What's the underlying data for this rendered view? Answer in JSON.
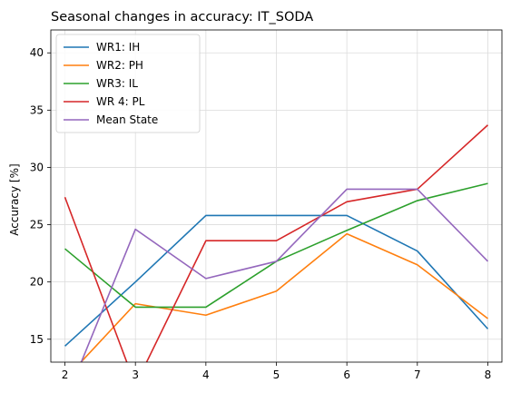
{
  "chart_data": {
    "type": "line",
    "title": "Seasonal changes in accuracy: IT_SODA",
    "xlabel": "",
    "ylabel": "Accuracy [%]",
    "x": [
      2,
      3,
      4,
      5,
      6,
      7,
      8
    ],
    "xlim": [
      1.8,
      8.2
    ],
    "ylim": [
      13,
      42
    ],
    "xticks": [
      2,
      3,
      4,
      5,
      6,
      7,
      8
    ],
    "yticks": [
      15,
      20,
      25,
      30,
      35,
      40
    ],
    "grid": true,
    "legend_position": "top-left",
    "series": [
      {
        "name": "WR1: IH",
        "color": "#1f77b4",
        "values": [
          14.4,
          20.0,
          25.8,
          25.8,
          25.8,
          22.7,
          15.9
        ]
      },
      {
        "name": "WR2: PH",
        "color": "#ff7f0e",
        "values": [
          11.5,
          18.1,
          17.1,
          19.2,
          24.2,
          21.5,
          16.8
        ]
      },
      {
        "name": "WR3: IL",
        "color": "#2ca02c",
        "values": [
          22.9,
          17.8,
          17.8,
          21.8,
          24.5,
          27.1,
          28.6
        ]
      },
      {
        "name": "WR 4: PL",
        "color": "#d62728",
        "values": [
          27.4,
          11.0,
          23.6,
          23.6,
          27.0,
          28.1,
          33.7
        ]
      },
      {
        "name": "Mean State",
        "color": "#9467bd",
        "values": [
          9.5,
          24.6,
          20.3,
          21.8,
          28.1,
          28.1,
          21.8
        ]
      }
    ]
  }
}
